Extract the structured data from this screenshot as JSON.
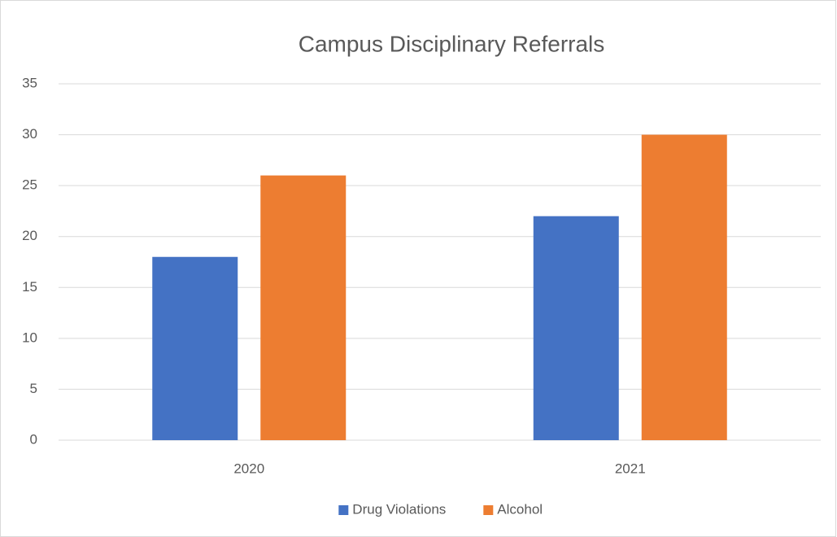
{
  "chart_data": {
    "type": "bar",
    "title": "Campus Disciplinary Referrals",
    "categories": [
      "2020",
      "2021"
    ],
    "series": [
      {
        "name": "Drug Violations",
        "color": "#4472c4",
        "values": [
          18,
          22
        ]
      },
      {
        "name": "Alcohol",
        "color": "#ed7d31",
        "values": [
          26,
          30
        ]
      }
    ],
    "ylim": [
      0,
      35
    ],
    "yticks": [
      0,
      5,
      10,
      15,
      20,
      25,
      30,
      35
    ],
    "grid": true,
    "legend": "bottom"
  }
}
